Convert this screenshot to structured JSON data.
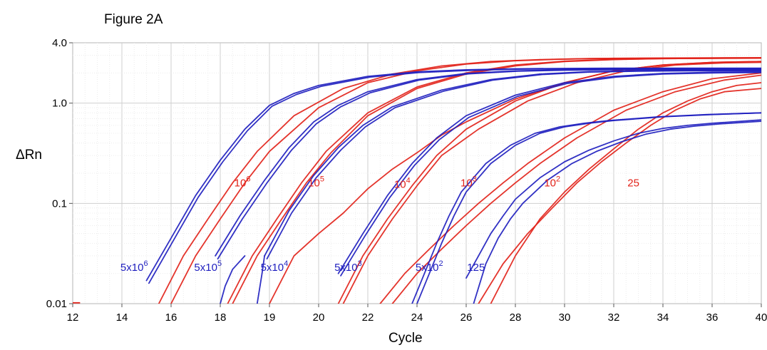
{
  "figure_title": "Figure 2A",
  "chart_data": {
    "type": "line",
    "title": "",
    "xlabel": "Cycle",
    "ylabel": "ΔRn",
    "xlim": [
      12,
      40
    ],
    "ylim": [
      0.01,
      4.0
    ],
    "yscale": "log",
    "grid": true,
    "x_ticks": [
      12,
      14,
      16,
      18,
      19,
      20,
      22,
      24,
      26,
      28,
      30,
      32,
      34,
      36,
      40
    ],
    "y_ticks": [
      0.01,
      0.1,
      1.0,
      4.0
    ],
    "y_tick_labels": [
      "0.01",
      "0.1",
      "1.0",
      "4.0"
    ],
    "colors": {
      "red": "#e2231a",
      "blue": "#1f1fbf"
    },
    "series": [
      {
        "color": "red",
        "x": [
          16,
          17,
          18,
          19,
          20,
          22,
          24,
          26,
          28,
          30,
          32,
          34,
          36,
          38,
          40
        ],
        "y": [
          0.01,
          0.03,
          0.07,
          0.16,
          0.33,
          0.9,
          1.6,
          2.1,
          2.45,
          2.65,
          2.75,
          2.8,
          2.82,
          2.83,
          2.84
        ]
      },
      {
        "color": "red",
        "x": [
          15.5,
          16.5,
          17.5,
          18.5,
          19.5,
          21,
          23,
          25,
          27,
          29,
          31,
          33,
          35,
          37,
          40
        ],
        "y": [
          0.01,
          0.03,
          0.07,
          0.16,
          0.33,
          0.75,
          1.4,
          1.95,
          2.35,
          2.6,
          2.72,
          2.78,
          2.8,
          2.81,
          2.82
        ]
      },
      {
        "color": "red",
        "x": [
          18.5,
          19.5,
          20.5,
          21.5,
          22.5,
          24,
          26,
          28,
          30,
          32,
          34,
          36,
          38,
          40
        ],
        "y": [
          0.01,
          0.03,
          0.07,
          0.16,
          0.32,
          0.75,
          1.4,
          1.95,
          2.35,
          2.6,
          2.72,
          2.78,
          2.8,
          2.81
        ]
      },
      {
        "color": "red",
        "x": [
          18.3,
          19.3,
          20.3,
          21.3,
          22.3,
          24,
          26,
          28,
          30,
          32,
          34,
          36,
          38,
          40
        ],
        "y": [
          0.01,
          0.03,
          0.07,
          0.16,
          0.33,
          0.8,
          1.45,
          2.0,
          2.4,
          2.62,
          2.73,
          2.78,
          2.8,
          2.81
        ]
      },
      {
        "color": "red",
        "x": [
          20,
          21,
          22,
          23,
          24,
          25,
          26,
          27,
          28,
          30,
          32,
          34,
          36,
          38,
          40
        ],
        "y": [
          0.01,
          0.03,
          0.05,
          0.08,
          0.14,
          0.22,
          0.32,
          0.48,
          0.65,
          1.1,
          1.6,
          2.1,
          2.4,
          2.55,
          2.6
        ]
      },
      {
        "color": "red",
        "x": [
          22.8,
          23.8,
          24.8,
          25.8,
          26.8,
          28,
          30,
          32,
          34,
          36,
          38,
          40
        ],
        "y": [
          0.01,
          0.03,
          0.07,
          0.15,
          0.3,
          0.55,
          1.05,
          1.6,
          2.1,
          2.4,
          2.55,
          2.6
        ]
      },
      {
        "color": "red",
        "x": [
          23,
          24,
          25,
          26,
          27,
          28.5,
          30.5,
          32.5,
          34.5,
          36.5,
          38.5,
          40
        ],
        "y": [
          0.01,
          0.03,
          0.07,
          0.15,
          0.3,
          0.55,
          1.05,
          1.6,
          2.1,
          2.4,
          2.52,
          2.55
        ]
      },
      {
        "color": "red",
        "x": [
          24.5,
          25.5,
          26.5,
          27.5,
          28.5,
          29.5,
          30.5,
          32,
          34,
          36,
          38,
          40
        ],
        "y": [
          0.01,
          0.02,
          0.035,
          0.06,
          0.1,
          0.16,
          0.25,
          0.45,
          0.85,
          1.3,
          1.75,
          2.0
        ]
      },
      {
        "color": "red",
        "x": [
          25,
          26,
          27,
          28,
          29,
          30,
          31,
          32.5,
          34.5,
          36.5,
          38.5,
          40
        ],
        "y": [
          0.01,
          0.02,
          0.035,
          0.06,
          0.1,
          0.16,
          0.25,
          0.45,
          0.85,
          1.3,
          1.7,
          1.9
        ]
      },
      {
        "color": "red",
        "x": [
          29,
          30,
          31,
          32,
          33,
          34,
          35,
          36,
          37,
          38,
          39,
          40
        ],
        "y": [
          0.01,
          0.03,
          0.07,
          0.13,
          0.22,
          0.35,
          0.55,
          0.8,
          1.05,
          1.3,
          1.5,
          1.6
        ]
      },
      {
        "color": "red",
        "x": [
          28.5,
          29.5,
          30.5,
          31.5,
          32.5,
          33.5,
          34.5,
          35.5,
          36.5,
          37.5,
          38.5,
          40
        ],
        "y": [
          0.01,
          0.025,
          0.05,
          0.09,
          0.16,
          0.26,
          0.4,
          0.6,
          0.85,
          1.1,
          1.3,
          1.4
        ]
      },
      {
        "color": "blue",
        "x": [
          15,
          16,
          17,
          18,
          19,
          20,
          21,
          22,
          24,
          26,
          28,
          30,
          32,
          34,
          36,
          38,
          40
        ],
        "y": [
          0.017,
          0.045,
          0.12,
          0.27,
          0.55,
          0.95,
          1.25,
          1.5,
          1.85,
          2.05,
          2.15,
          2.2,
          2.22,
          2.23,
          2.23,
          2.23,
          2.23
        ]
      },
      {
        "color": "blue",
        "x": [
          15.1,
          16.1,
          17.1,
          18.1,
          19.1,
          20.1,
          21.1,
          22.1,
          24.1,
          26.1,
          28.1,
          30,
          32,
          34,
          36,
          38,
          40
        ],
        "y": [
          0.016,
          0.043,
          0.115,
          0.26,
          0.53,
          0.93,
          1.22,
          1.47,
          1.82,
          2.02,
          2.12,
          2.18,
          2.2,
          2.21,
          2.21,
          2.21,
          2.21
        ]
      },
      {
        "color": "blue",
        "x": [
          17.8,
          18.8,
          19.8,
          20.8,
          21.8,
          22.8,
          24,
          26,
          28,
          30,
          32,
          34,
          36,
          38,
          40
        ],
        "y": [
          0.03,
          0.075,
          0.17,
          0.36,
          0.65,
          0.95,
          1.3,
          1.72,
          1.98,
          2.1,
          2.15,
          2.17,
          2.18,
          2.18,
          2.18
        ]
      },
      {
        "color": "blue",
        "x": [
          17.9,
          18.9,
          19.9,
          20.9,
          21.9,
          22.9,
          24.1,
          26.1,
          28.1,
          30.1,
          32,
          34,
          36,
          38,
          40
        ],
        "y": [
          0.028,
          0.07,
          0.16,
          0.34,
          0.62,
          0.92,
          1.27,
          1.7,
          1.96,
          2.08,
          2.13,
          2.15,
          2.16,
          2.16,
          2.16
        ]
      },
      {
        "color": "blue",
        "x": [
          18,
          18.2,
          18.5,
          19
        ],
        "y": [
          0.01,
          0.015,
          0.022,
          0.03
        ]
      },
      {
        "color": "blue",
        "x": [
          19.8,
          20.8,
          21.8,
          22.8,
          23.8,
          25,
          27,
          29,
          31,
          33,
          35,
          37,
          40
        ],
        "y": [
          0.03,
          0.085,
          0.19,
          0.36,
          0.6,
          0.92,
          1.35,
          1.72,
          1.95,
          2.06,
          2.1,
          2.12,
          2.12
        ]
      },
      {
        "color": "blue",
        "x": [
          19.9,
          20.9,
          21.9,
          22.9,
          23.9,
          25.1,
          27.1,
          29.1,
          31.1,
          33,
          35,
          37,
          40
        ],
        "y": [
          0.028,
          0.08,
          0.18,
          0.34,
          0.58,
          0.9,
          1.32,
          1.7,
          1.93,
          2.04,
          2.08,
          2.1,
          2.1
        ]
      },
      {
        "color": "blue",
        "x": [
          19.5,
          19.7,
          19.8
        ],
        "y": [
          0.01,
          0.02,
          0.03
        ]
      },
      {
        "color": "blue",
        "x": [
          22.8,
          23.8,
          24.8,
          25.8,
          26.8,
          28,
          30,
          32,
          34,
          36,
          38,
          40
        ],
        "y": [
          0.02,
          0.05,
          0.12,
          0.25,
          0.45,
          0.75,
          1.2,
          1.6,
          1.85,
          1.98,
          2.03,
          2.05
        ]
      },
      {
        "color": "blue",
        "x": [
          22.9,
          23.9,
          24.9,
          25.9,
          26.9,
          28.1,
          30.1,
          32.1,
          34.1,
          36,
          38,
          40
        ],
        "y": [
          0.019,
          0.048,
          0.115,
          0.24,
          0.43,
          0.72,
          1.17,
          1.57,
          1.82,
          1.95,
          2.0,
          2.02
        ]
      },
      {
        "color": "blue",
        "x": [
          26,
          26.5,
          27,
          27.5,
          28,
          29,
          30,
          31,
          32,
          33,
          34,
          35,
          36,
          38,
          40
        ],
        "y": [
          0.01,
          0.02,
          0.04,
          0.075,
          0.13,
          0.25,
          0.38,
          0.5,
          0.58,
          0.63,
          0.67,
          0.7,
          0.73,
          0.77,
          0.8
        ]
      },
      {
        "color": "blue",
        "x": [
          25.8,
          26.3,
          26.8,
          27.3,
          27.8,
          28.8,
          29.8,
          30.8,
          31.8,
          32.8,
          33.8,
          34.8,
          35.8,
          37.8,
          40
        ],
        "y": [
          0.01,
          0.02,
          0.04,
          0.075,
          0.13,
          0.25,
          0.38,
          0.5,
          0.58,
          0.63,
          0.67,
          0.7,
          0.73,
          0.77,
          0.8
        ]
      },
      {
        "color": "blue",
        "x": [
          28,
          28.5,
          29,
          29.5,
          30,
          31,
          32,
          33,
          34,
          35,
          36,
          37,
          38,
          40
        ],
        "y": [
          0.018,
          0.03,
          0.05,
          0.075,
          0.11,
          0.18,
          0.26,
          0.34,
          0.42,
          0.5,
          0.56,
          0.6,
          0.63,
          0.68
        ]
      },
      {
        "color": "blue",
        "x": [
          28.3,
          28.8,
          29.3,
          29.8,
          30.3,
          31.3,
          32.3,
          33.3,
          34.3,
          35.3,
          36.3,
          37.3,
          38.3,
          40
        ],
        "y": [
          0.01,
          0.025,
          0.045,
          0.07,
          0.1,
          0.17,
          0.25,
          0.33,
          0.41,
          0.49,
          0.55,
          0.59,
          0.62,
          0.66
        ]
      }
    ],
    "annotations": [
      {
        "text": "5x10",
        "sup": "6",
        "color": "blue",
        "x": 14.5,
        "y": 0.023
      },
      {
        "text": "5x10",
        "sup": "5",
        "color": "blue",
        "x": 17.5,
        "y": 0.023
      },
      {
        "text": "5x10",
        "sup": "4",
        "color": "blue",
        "x": 20.2,
        "y": 0.023
      },
      {
        "text": "5x10",
        "sup": "3",
        "color": "blue",
        "x": 23.2,
        "y": 0.023
      },
      {
        "text": "5x10",
        "sup": "2",
        "color": "blue",
        "x": 26.5,
        "y": 0.023
      },
      {
        "text": "125",
        "sup": "",
        "color": "blue",
        "x": 28.4,
        "y": 0.023
      },
      {
        "text": "10",
        "sup": "6",
        "color": "red",
        "x": 18.9,
        "y": 0.16
      },
      {
        "text": "10",
        "sup": "5",
        "color": "red",
        "x": 21.9,
        "y": 0.16
      },
      {
        "text": "10",
        "sup": "4",
        "color": "red",
        "x": 25.4,
        "y": 0.155
      },
      {
        "text": "10",
        "sup": "3",
        "color": "red",
        "x": 28.1,
        "y": 0.16
      },
      {
        "text": "10",
        "sup": "2",
        "color": "red",
        "x": 31.5,
        "y": 0.16
      },
      {
        "text": "25",
        "sup": "",
        "color": "red",
        "x": 34.8,
        "y": 0.16
      }
    ]
  }
}
